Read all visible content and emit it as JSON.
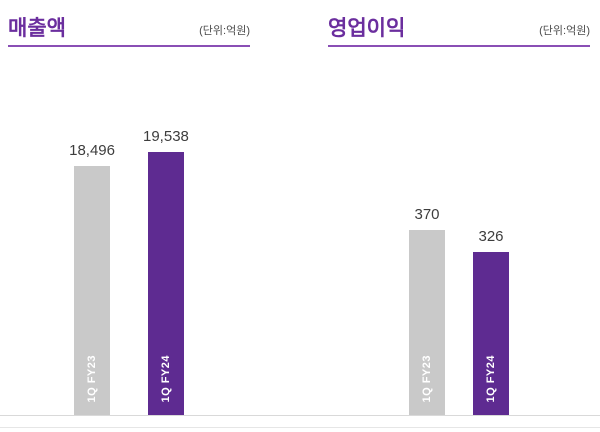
{
  "page": {
    "background": "#ffffff",
    "accent_purple": "#6b2e9e",
    "underline_purple": "#8a4fb5",
    "bar_gray": "#c9c9c9",
    "bar_purple": "#5e2b91"
  },
  "chart_data": [
    {
      "type": "bar",
      "title": "매출액",
      "unit_label": "(단위:억원)",
      "categories": [
        "1Q FY23",
        "1Q FY24"
      ],
      "values": [
        18496,
        19538
      ],
      "value_labels": [
        "18,496",
        "19,538"
      ],
      "series_colors": [
        "#c9c9c9",
        "#5e2b91"
      ],
      "ylim": [
        0,
        19538
      ],
      "grid": false,
      "legend": "none"
    },
    {
      "type": "bar",
      "title": "영업이익",
      "unit_label": "(단위:억원)",
      "categories": [
        "1Q FY23",
        "1Q FY24"
      ],
      "values": [
        370,
        326
      ],
      "value_labels": [
        "370",
        "326"
      ],
      "series_colors": [
        "#c9c9c9",
        "#5e2b91"
      ],
      "ylim": [
        0,
        370
      ],
      "grid": false,
      "legend": "none"
    }
  ]
}
